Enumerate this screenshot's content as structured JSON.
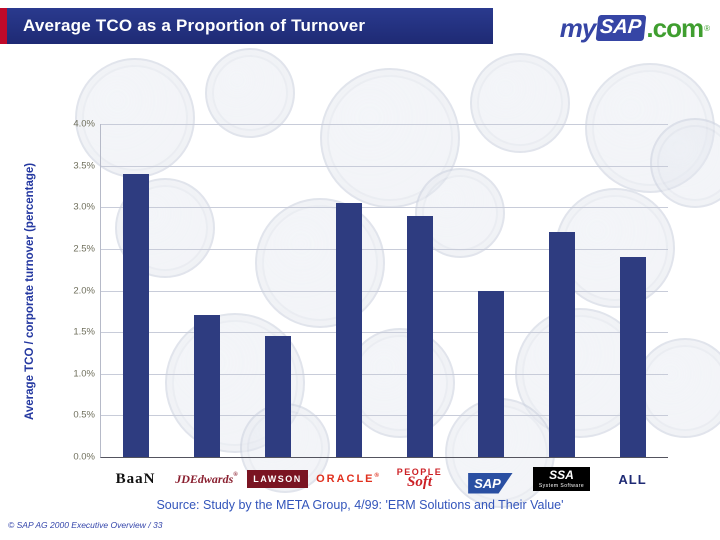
{
  "slide": {
    "header": {
      "title": "Average TCO as a Proportion of Turnover",
      "logo": {
        "my": "my",
        "sap": "SAP",
        "com": ".com",
        "reg": "®"
      }
    },
    "source": "Source: Study by the META Group, 4/99: 'ERM Solutions and Their Value'",
    "copyright": "© SAP AG 2000 Executive Overview / 33"
  },
  "chart_data": {
    "type": "bar",
    "title": "Average TCO as a Proportion of Turnover",
    "ylabel": "Average TCO / corporate turnover (percentage)",
    "xlabel": "",
    "ylim": [
      0,
      4.0
    ],
    "ytick_step": 0.5,
    "yticks": [
      "0.0%",
      "0.5%",
      "1.0%",
      "1.5%",
      "2.0%",
      "2.5%",
      "3.0%",
      "3.5%",
      "4.0%"
    ],
    "categories": [
      "Baan",
      "JD Edwards",
      "Lawson",
      "Oracle",
      "PeopleSoft",
      "SAP",
      "SSA",
      "ALL"
    ],
    "values": [
      3.4,
      1.7,
      1.45,
      3.05,
      2.9,
      2.0,
      2.7,
      2.4
    ],
    "bar_color": "#2e3c80",
    "grid": true,
    "legend": false
  },
  "logos": {
    "baan": {
      "text": "BaaN"
    },
    "jdedwards": {
      "text": "JDEdwards",
      "reg": "®"
    },
    "lawson": {
      "text": "LAWSON"
    },
    "oracle": {
      "text": "ORACLE",
      "reg": "®"
    },
    "peoplesoft": {
      "line1": "PEOPLE",
      "line2": "Soft"
    },
    "sap": {
      "text": "SAP"
    },
    "ssa": {
      "line1": "SSA",
      "line2": "System Software"
    },
    "all": {
      "text": "ALL"
    }
  }
}
